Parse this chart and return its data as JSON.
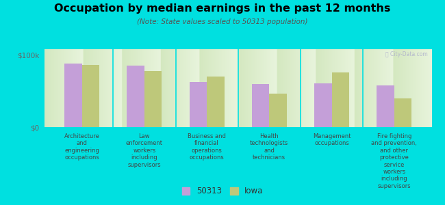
{
  "title": "Occupation by median earnings in the past 12 months",
  "subtitle": "(Note: State values scaled to 50313 population)",
  "background_color": "#00e0e0",
  "plot_bg_top": "#d4e8c0",
  "plot_bg_bottom": "#e8f4dc",
  "categories": [
    "Architecture\nand\nengineering\noccupations",
    "Law\nenforcement\nworkers\nincluding\nsupervisors",
    "Business and\nfinancial\noperations\noccupations",
    "Health\ntechnologists\nand\ntechnicians",
    "Management\noccupations",
    "Fire fighting\nand prevention,\nand other\nprotective\nservice\nworkers\nincluding\nsupervisors"
  ],
  "values_50313": [
    88000,
    85000,
    63000,
    60000,
    61000,
    58000
  ],
  "values_iowa": [
    86000,
    78000,
    70000,
    46000,
    76000,
    40000
  ],
  "color_50313": "#c49fd8",
  "color_iowa": "#bec87a",
  "ylabel_ticks": [
    "$100k",
    "$0"
  ],
  "ytick_vals": [
    100000,
    0
  ],
  "ylim": [
    0,
    108000
  ],
  "legend_labels": [
    "50313",
    "Iowa"
  ],
  "watermark": "Ⓜ City-Data.com"
}
